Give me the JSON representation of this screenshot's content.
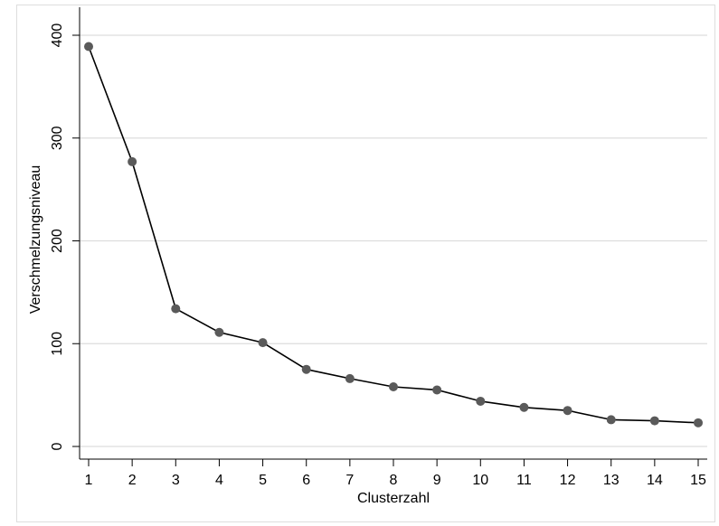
{
  "chart_data": {
    "type": "line",
    "title": "",
    "xlabel": "Clusterzahl",
    "ylabel": "Verschmelzungsniveau",
    "x": [
      1,
      2,
      3,
      4,
      5,
      6,
      7,
      8,
      9,
      10,
      11,
      12,
      13,
      14,
      15
    ],
    "y": [
      389,
      277,
      134,
      111,
      101,
      75,
      66,
      58,
      55,
      44,
      38,
      35,
      26,
      25,
      23
    ],
    "xlim": [
      1,
      15
    ],
    "ylim": [
      0,
      400
    ],
    "xticks": [
      "1",
      "2",
      "3",
      "4",
      "5",
      "6",
      "7",
      "8",
      "9",
      "10",
      "11",
      "12",
      "13",
      "14",
      "15"
    ],
    "yticks": [
      "0",
      "100",
      "200",
      "300",
      "400"
    ],
    "grid": "horizontal",
    "legend": "none",
    "colors": {
      "line": "#000000",
      "marker": "#5a5a5a",
      "grid": "#dddddd",
      "axis": "#000000",
      "frame": "#dddddd"
    }
  }
}
